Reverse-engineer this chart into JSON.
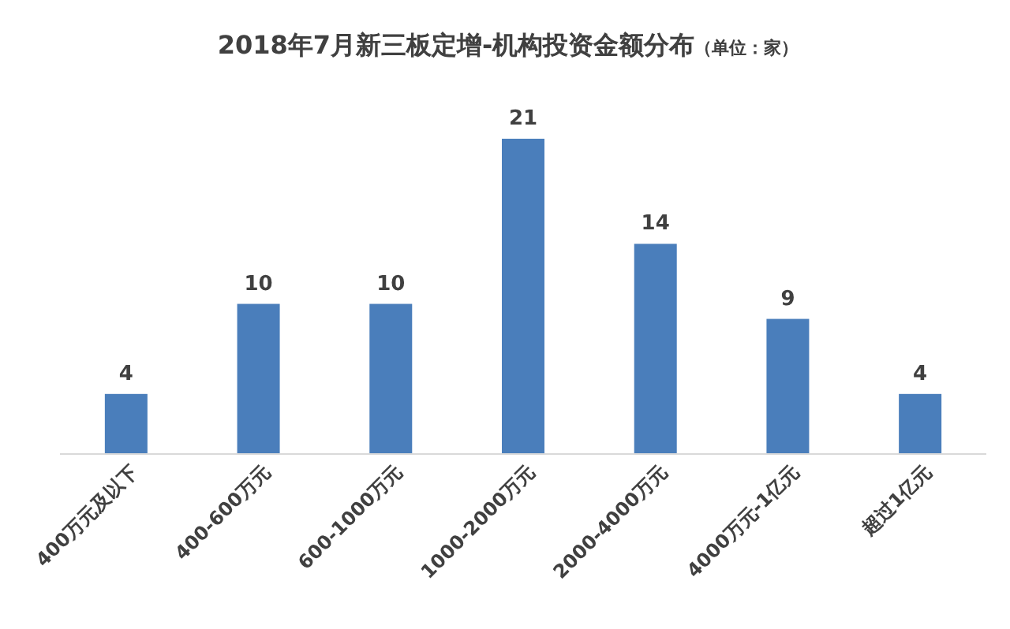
{
  "chart_data": {
    "type": "bar",
    "title": "2018年7月新三板定增-机构投资金额分布",
    "subtitle": "（单位：家）",
    "categories": [
      "400万元及以下",
      "400-600万元",
      "600-1000万元",
      "1000-2000万元",
      "2000-4000万元",
      "4000万元-1亿元",
      "超过1亿元"
    ],
    "values": [
      4,
      10,
      10,
      21,
      14,
      9,
      4
    ],
    "color": "#4a7ebb",
    "data_labels": true
  }
}
